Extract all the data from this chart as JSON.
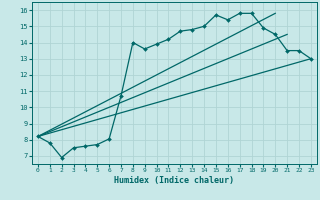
{
  "xlabel": "Humidex (Indice chaleur)",
  "bg_color": "#c8e8e8",
  "grid_color": "#b0d4d4",
  "line_color": "#006868",
  "xlim": [
    -0.5,
    23.5
  ],
  "ylim": [
    6.5,
    16.5
  ],
  "xticks": [
    0,
    1,
    2,
    3,
    4,
    5,
    6,
    7,
    8,
    9,
    10,
    11,
    12,
    13,
    14,
    15,
    16,
    17,
    18,
    19,
    20,
    21,
    22,
    23
  ],
  "yticks": [
    7,
    8,
    9,
    10,
    11,
    12,
    13,
    14,
    15,
    16
  ],
  "main_x": [
    0,
    1,
    2,
    3,
    4,
    5,
    6,
    7,
    8,
    9,
    10,
    11,
    12,
    13,
    14,
    15,
    16,
    17,
    18,
    19,
    20,
    21,
    22,
    23
  ],
  "main_y": [
    8.2,
    7.8,
    6.9,
    7.5,
    7.6,
    7.7,
    8.05,
    10.7,
    14.0,
    13.6,
    13.9,
    14.2,
    14.7,
    14.8,
    15.0,
    15.7,
    15.4,
    15.8,
    15.8,
    14.9,
    14.5,
    13.5,
    13.5,
    13.0
  ],
  "straight_lines": [
    {
      "x": [
        0,
        23
      ],
      "y": [
        8.2,
        13.0
      ]
    },
    {
      "x": [
        0,
        21
      ],
      "y": [
        8.2,
        14.5
      ]
    },
    {
      "x": [
        0,
        20
      ],
      "y": [
        8.2,
        15.8
      ]
    }
  ]
}
